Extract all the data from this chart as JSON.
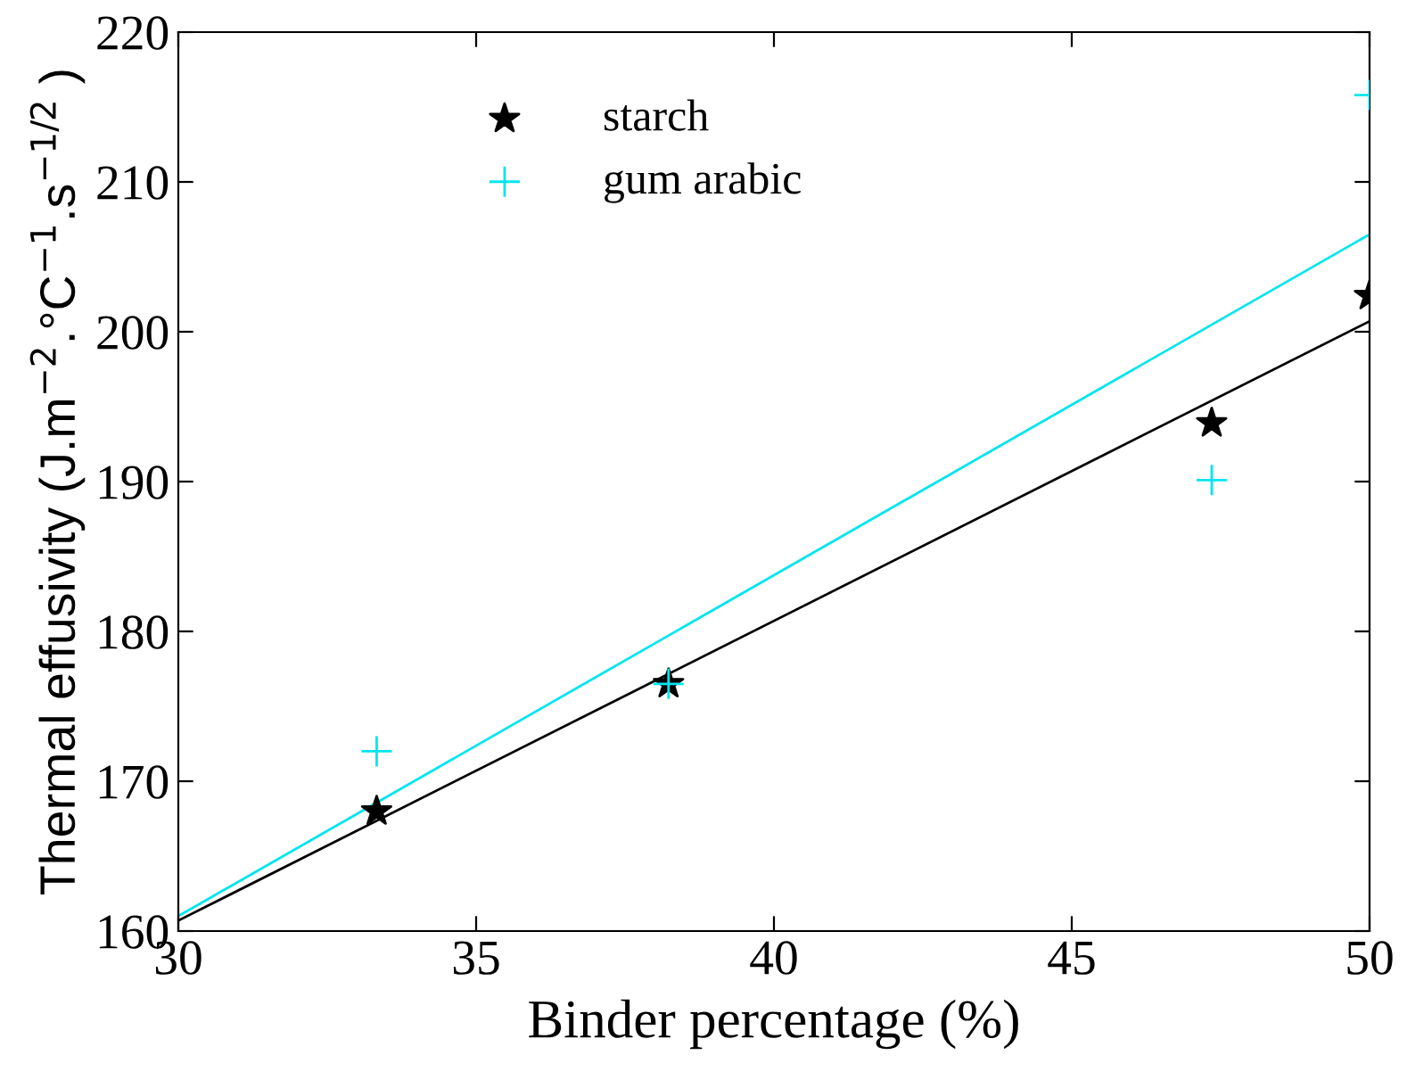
{
  "chart_data": {
    "type": "scatter",
    "xlabel": "Binder percentage (%)",
    "ylabel": "Thermal effusivity (J.m$^{−2}$.°C$^{−1}$.s$^{−1/2}$ )",
    "xlim": [
      30,
      50
    ],
    "xticks": [
      30,
      35,
      40,
      45,
      50
    ],
    "ylim": [
      160,
      220
    ],
    "yticks": [
      160,
      170,
      180,
      190,
      200,
      210,
      220
    ],
    "grid": false,
    "legend": "top",
    "series": [
      {
        "name": "starch",
        "marker": "star",
        "color": "#000000",
        "x": [
          33.33,
          38.23,
          47.35,
          50
        ],
        "values": [
          168.0,
          176.5,
          193.9,
          202.4
        ]
      },
      {
        "name": "gum arabic",
        "marker": "cross",
        "color": "#00e5ee",
        "x": [
          33.33,
          38.23,
          47.35,
          50
        ],
        "values": [
          172.0,
          176.5,
          190.1,
          215.8
        ]
      },
      {
        "type": "line",
        "marker": "none",
        "color": "#000000",
        "x": [
          30,
          50
        ],
        "values": [
          160.7,
          200.7
        ]
      },
      {
        "type": "line",
        "marker": "none",
        "color": "#00e5ee",
        "x": [
          30,
          50
        ],
        "values": [
          161.0,
          206.5
        ]
      }
    ]
  }
}
